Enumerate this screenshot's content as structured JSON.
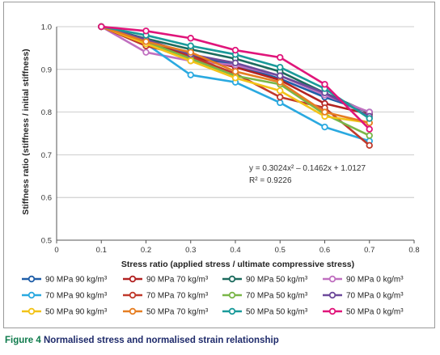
{
  "caption": {
    "label": "Figure 4",
    "text": "Normalised stress and normalised strain relationship"
  },
  "equation": {
    "line1": "y = 0.3024x² – 0.1462x + 1.0127",
    "line2": "R² = 0.9226"
  },
  "chart_data": {
    "type": "line",
    "xlabel": "Stress ratio (applied stress / ultimate compressive stress)",
    "ylabel": "Stiffness ratio (stiffness / initial stiffness)",
    "xlim": [
      0,
      0.8
    ],
    "ylim": [
      0.5,
      1.0
    ],
    "xticks": [
      "0",
      "0.1",
      "0.2",
      "0.3",
      "0.4",
      "0.5",
      "0.6",
      "0.7",
      "0.8"
    ],
    "yticks": [
      "0.5",
      "0.6",
      "0.7",
      "0.8",
      "0.9",
      "1.0"
    ],
    "grid": "horizontal",
    "legend_position": "bottom",
    "x": [
      0.1,
      0.2,
      0.3,
      0.4,
      0.5,
      0.6,
      0.7
    ],
    "series": [
      {
        "name": "90 MPa 90 kg/m³",
        "color": "#1f5ea8",
        "values": [
          1.0,
          0.962,
          0.934,
          0.91,
          0.878,
          0.835,
          0.8
        ]
      },
      {
        "name": "90 MPa 70 kg/m³",
        "color": "#b22222",
        "values": [
          1.0,
          0.965,
          0.93,
          0.905,
          0.875,
          0.82,
          0.795
        ]
      },
      {
        "name": "90 MPa 50 kg/m³",
        "color": "#1d6b5e",
        "values": [
          1.0,
          0.972,
          0.947,
          0.925,
          0.895,
          0.845,
          0.798
        ]
      },
      {
        "name": "90 MPa 0 kg/m³",
        "color": "#c070c0",
        "values": [
          1.0,
          0.94,
          0.92,
          0.91,
          0.885,
          0.84,
          0.8
        ]
      },
      {
        "name": "70 MPa 90 kg/m³",
        "color": "#2aa9e0",
        "values": [
          1.0,
          0.96,
          0.887,
          0.87,
          0.822,
          0.765,
          0.732
        ]
      },
      {
        "name": "70 MPa 70 kg/m³",
        "color": "#c0392b",
        "values": [
          1.0,
          0.955,
          0.93,
          0.89,
          0.835,
          0.81,
          0.722
        ]
      },
      {
        "name": "70 MPa 50 kg/m³",
        "color": "#7ab648",
        "values": [
          1.0,
          0.965,
          0.925,
          0.885,
          0.865,
          0.795,
          0.745
        ]
      },
      {
        "name": "70 MPa 0 kg/m³",
        "color": "#6d4a9b",
        "values": [
          1.0,
          0.97,
          0.935,
          0.915,
          0.885,
          0.845,
          0.79
        ]
      },
      {
        "name": "50 MPa 90 kg/m³",
        "color": "#f2c318",
        "values": [
          1.0,
          0.96,
          0.92,
          0.88,
          0.85,
          0.79,
          0.775
        ]
      },
      {
        "name": "50 MPa 70 kg/m³",
        "color": "#e67e22",
        "values": [
          1.0,
          0.965,
          0.94,
          0.895,
          0.87,
          0.8,
          0.775
        ]
      },
      {
        "name": "50 MPa 50 kg/m³",
        "color": "#1a9a9a",
        "values": [
          1.0,
          0.98,
          0.955,
          0.935,
          0.905,
          0.855,
          0.785
        ]
      },
      {
        "name": "50 MPa 0 kg/m³",
        "color": "#e0157a",
        "values": [
          1.0,
          0.99,
          0.973,
          0.945,
          0.928,
          0.865,
          0.76
        ]
      }
    ]
  }
}
